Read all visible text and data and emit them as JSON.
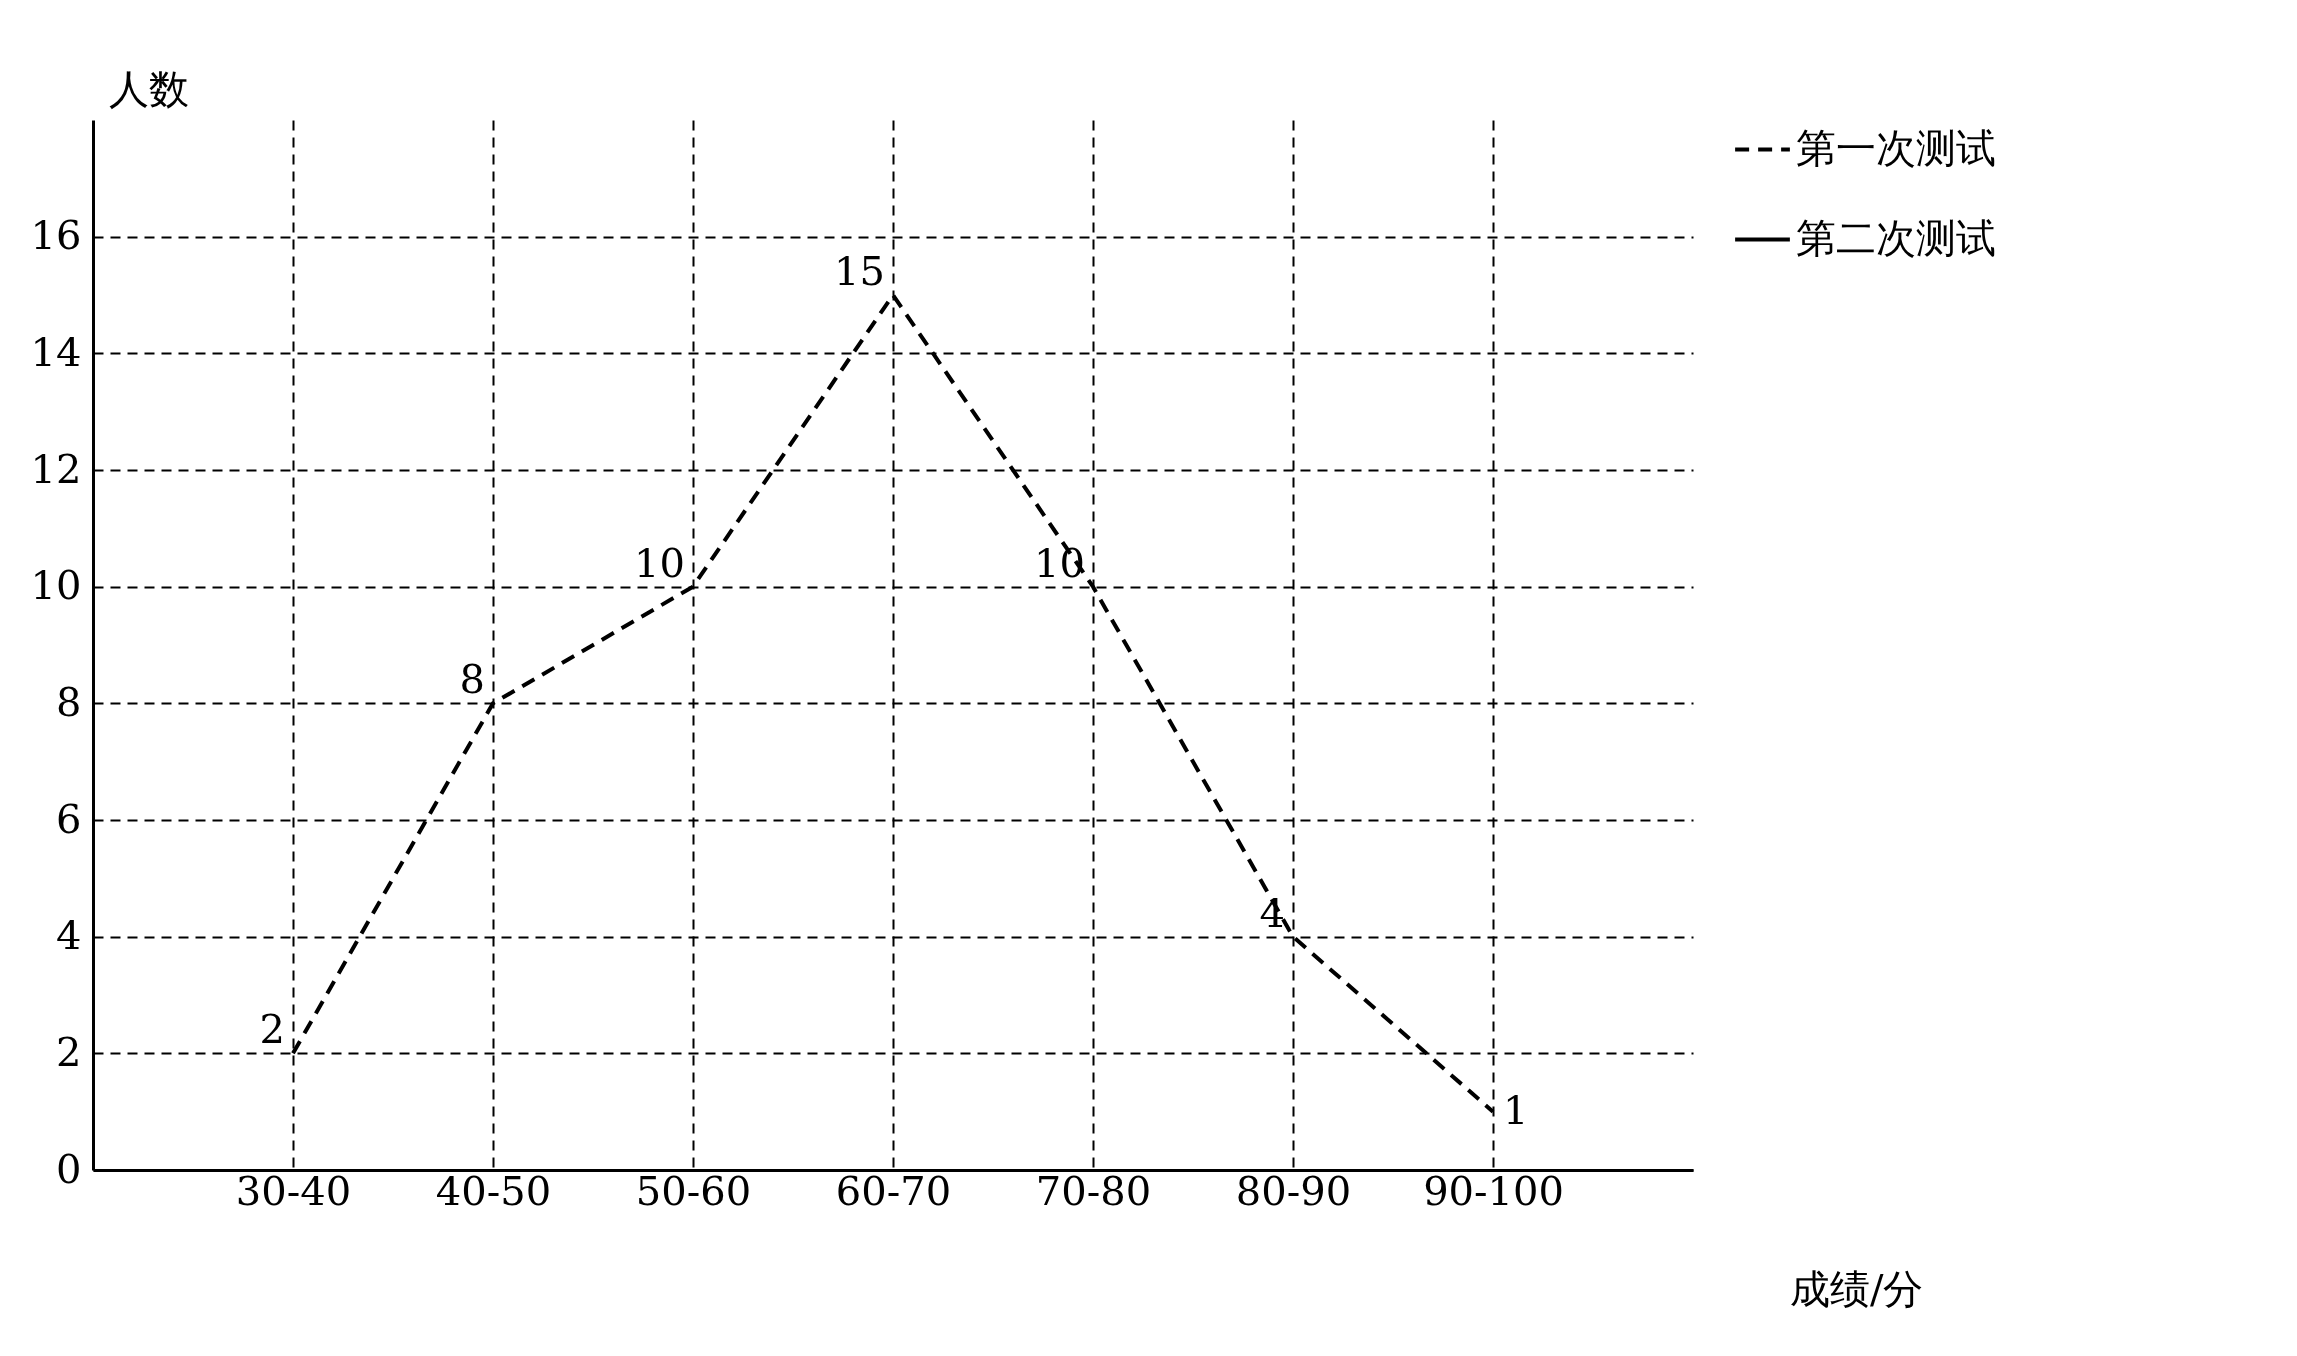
{
  "chart_data": {
    "type": "line",
    "xlabel": "成绩/分",
    "ylabel": "人数",
    "categories": [
      "30-40",
      "40-50",
      "50-60",
      "60-70",
      "70-80",
      "80-90",
      "90-100"
    ],
    "series": [
      {
        "name": "第一次测试",
        "color": "#000000",
        "line_style": "dashed",
        "values": [
          2,
          8,
          10,
          15,
          10,
          4,
          1
        ]
      },
      {
        "name": "第二次测试",
        "color": "#000000",
        "line_style": "solid",
        "values": [
          null,
          null,
          null,
          null,
          null,
          null,
          null
        ]
      }
    ],
    "ylim": [
      0,
      18
    ],
    "yticks": [
      0,
      2,
      4,
      6,
      8,
      10,
      12,
      14,
      16
    ],
    "grid": true,
    "legend": "top right",
    "marker": "none",
    "data_labels": true
  }
}
